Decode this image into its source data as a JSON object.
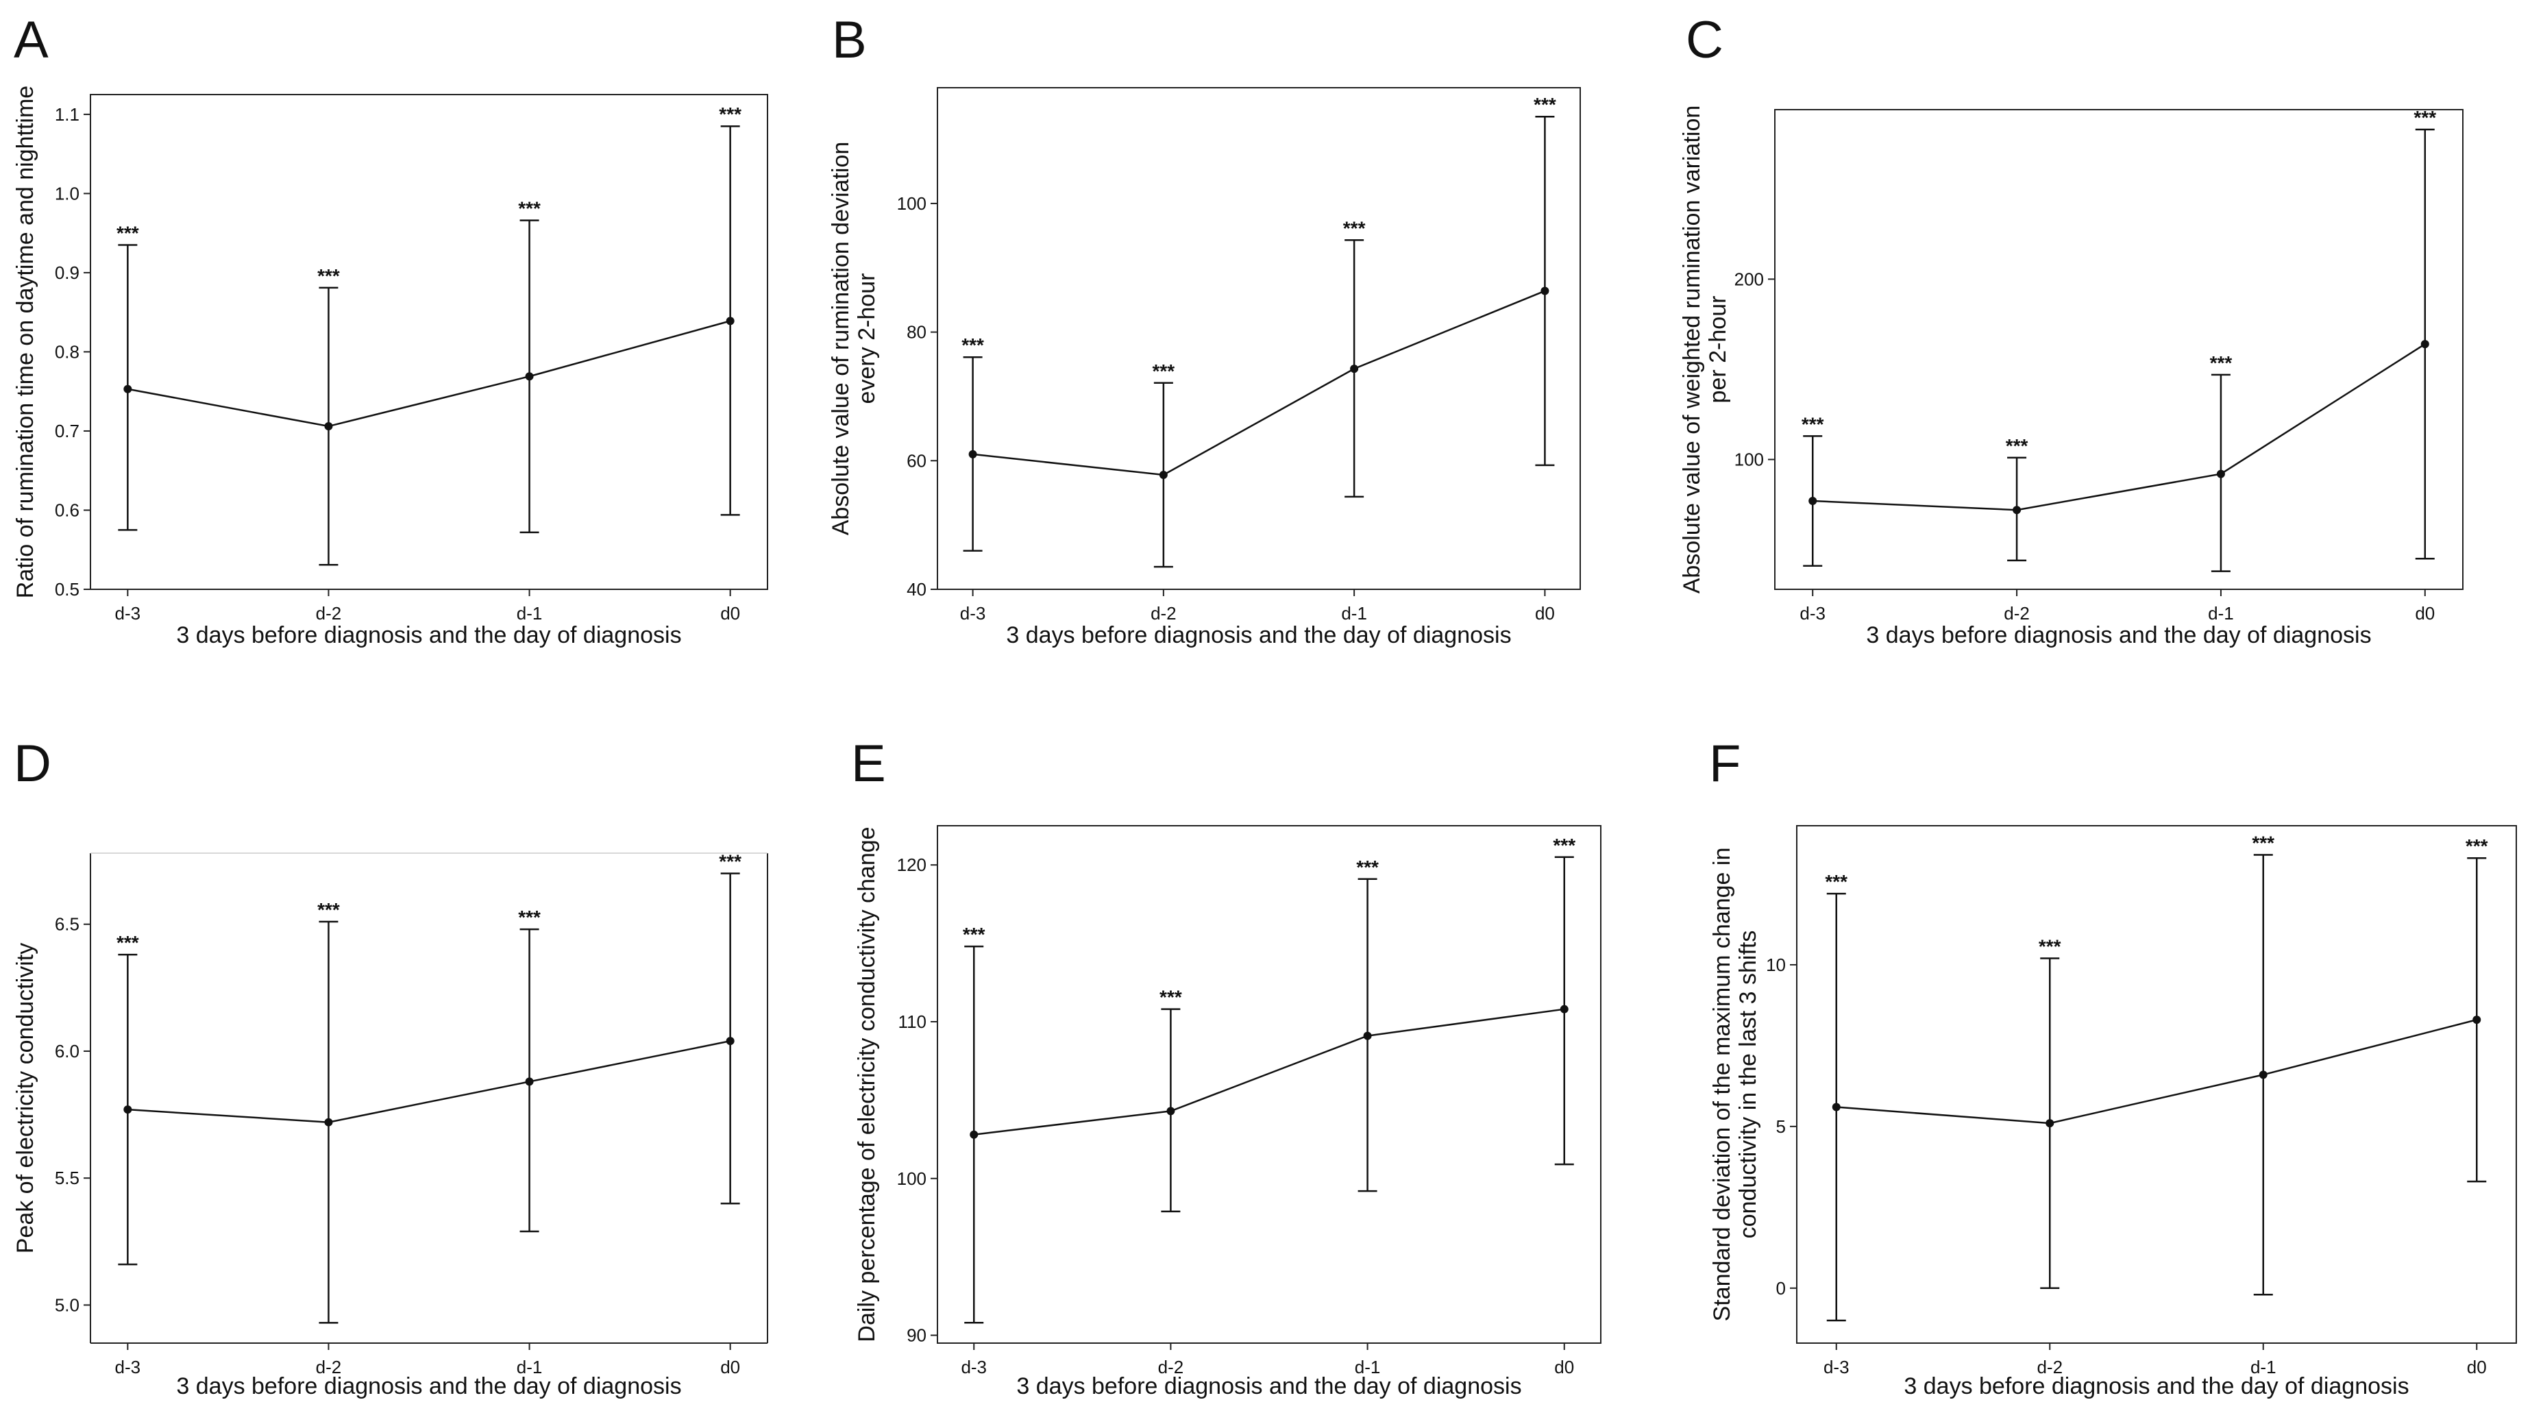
{
  "figure": {
    "panel_count": 6
  },
  "chart_data": [
    {
      "panel": "A",
      "type": "line",
      "title": "",
      "xlabel": "3 days before diagnosis and the day of diagnosis",
      "ylabel": "Ratio of rumination time on daytime and nighttime",
      "categories": [
        "d-3",
        "d-2",
        "d-1",
        "d0"
      ],
      "values": [
        0.753,
        0.706,
        0.769,
        0.839
      ],
      "lower": [
        0.575,
        0.531,
        0.572,
        0.594
      ],
      "upper": [
        0.935,
        0.881,
        0.966,
        1.085
      ],
      "significance": [
        "***",
        "***",
        "***",
        "***"
      ],
      "ylim": [
        0.5,
        1.125
      ],
      "yticks": [
        0.5,
        0.6,
        0.7,
        0.8,
        0.9,
        1.0,
        1.1
      ],
      "ytick_labels": [
        "0.5",
        "0.6",
        "0.7",
        "0.8",
        "0.9",
        "1.0",
        "1.1"
      ],
      "frame": "box"
    },
    {
      "panel": "B",
      "type": "line",
      "title": "",
      "xlabel": "3 days before diagnosis and the day of diagnosis",
      "ylabel": "Absolute value of rumination deviation every 2-hour",
      "ylabel_lines": [
        "Absolute value of rumination deviation",
        "every 2-hour"
      ],
      "categories": [
        "d-3",
        "d-2",
        "d-1",
        "d0"
      ],
      "values": [
        61.0,
        57.8,
        74.3,
        86.4
      ],
      "lower": [
        46.0,
        43.5,
        54.4,
        59.3
      ],
      "upper": [
        76.1,
        72.1,
        94.3,
        113.5
      ],
      "significance": [
        "***",
        "***",
        "***",
        "***"
      ],
      "ylim": [
        40,
        118
      ],
      "yticks": [
        40,
        60,
        80,
        100
      ],
      "ytick_labels": [
        "40",
        "60",
        "80",
        "100"
      ],
      "frame": "box"
    },
    {
      "panel": "C",
      "type": "line",
      "title": "",
      "xlabel": "3 days before diagnosis and the day of diagnosis",
      "ylabel": "Absolute value of weighted rumination variation per 2-hour",
      "ylabel_lines": [
        "Absolute value of weighted rumination variation",
        "per 2-hour"
      ],
      "categories": [
        "d-3",
        "d-2",
        "d-1",
        "d0"
      ],
      "values": [
        77,
        72,
        92,
        164
      ],
      "lower": [
        41,
        44,
        38,
        45
      ],
      "upper": [
        113,
        101,
        147,
        283
      ],
      "significance": [
        "***",
        "***",
        "***",
        "***"
      ],
      "ylim": [
        28,
        294
      ],
      "yticks": [
        100,
        200
      ],
      "ytick_labels": [
        "100",
        "200"
      ],
      "frame": "box"
    },
    {
      "panel": "D",
      "type": "line",
      "title": "",
      "xlabel": "3 days before diagnosis and the day of diagnosis",
      "ylabel": "Peak of electricity conductivity",
      "categories": [
        "d-3",
        "d-2",
        "d-1",
        "d0"
      ],
      "values": [
        5.77,
        5.72,
        5.88,
        6.04
      ],
      "lower": [
        5.16,
        4.93,
        5.29,
        5.4
      ],
      "upper": [
        6.38,
        6.51,
        6.48,
        6.7
      ],
      "significance": [
        "***",
        "***",
        "***",
        "***"
      ],
      "ylim": [
        4.85,
        6.78
      ],
      "yticks": [
        5.0,
        5.5,
        6.0,
        6.5
      ],
      "ytick_labels": [
        "5.0",
        "5.5",
        "6.0",
        "6.5"
      ],
      "frame": "open-top"
    },
    {
      "panel": "E",
      "type": "line",
      "title": "",
      "xlabel": "3 days before diagnosis and the day of diagnosis",
      "ylabel": "Daily percentage of electricity conductivity change",
      "categories": [
        "d-3",
        "d-2",
        "d-1",
        "d0"
      ],
      "values": [
        102.8,
        104.3,
        109.1,
        110.8
      ],
      "lower": [
        90.8,
        97.9,
        99.2,
        100.9
      ],
      "upper": [
        114.8,
        110.8,
        119.1,
        120.5
      ],
      "significance": [
        "***",
        "***",
        "***",
        "***"
      ],
      "ylim": [
        89.5,
        122.5
      ],
      "yticks": [
        90,
        100,
        110,
        120
      ],
      "ytick_labels": [
        "90",
        "100",
        "110",
        "120"
      ],
      "frame": "box"
    },
    {
      "panel": "F",
      "type": "line",
      "title": "",
      "xlabel": "3 days before diagnosis and the day of diagnosis",
      "ylabel": "Standard deviation of the maximum change in conductivity in the last 3 shifts",
      "ylabel_lines": [
        "Standard deviation of the maximum change in",
        "conductivity in the last 3 shifts"
      ],
      "categories": [
        "d-3",
        "d-2",
        "d-1",
        "d0"
      ],
      "values": [
        5.6,
        5.1,
        6.6,
        8.3
      ],
      "lower": [
        -1.0,
        0.0,
        -0.2,
        3.3
      ],
      "upper": [
        12.2,
        10.2,
        13.4,
        13.3
      ],
      "significance": [
        "***",
        "***",
        "***",
        "***"
      ],
      "ylim": [
        -1.7,
        14.3
      ],
      "yticks": [
        0,
        5,
        10
      ],
      "ytick_labels": [
        "0",
        "5",
        "10"
      ],
      "frame": "box"
    }
  ]
}
